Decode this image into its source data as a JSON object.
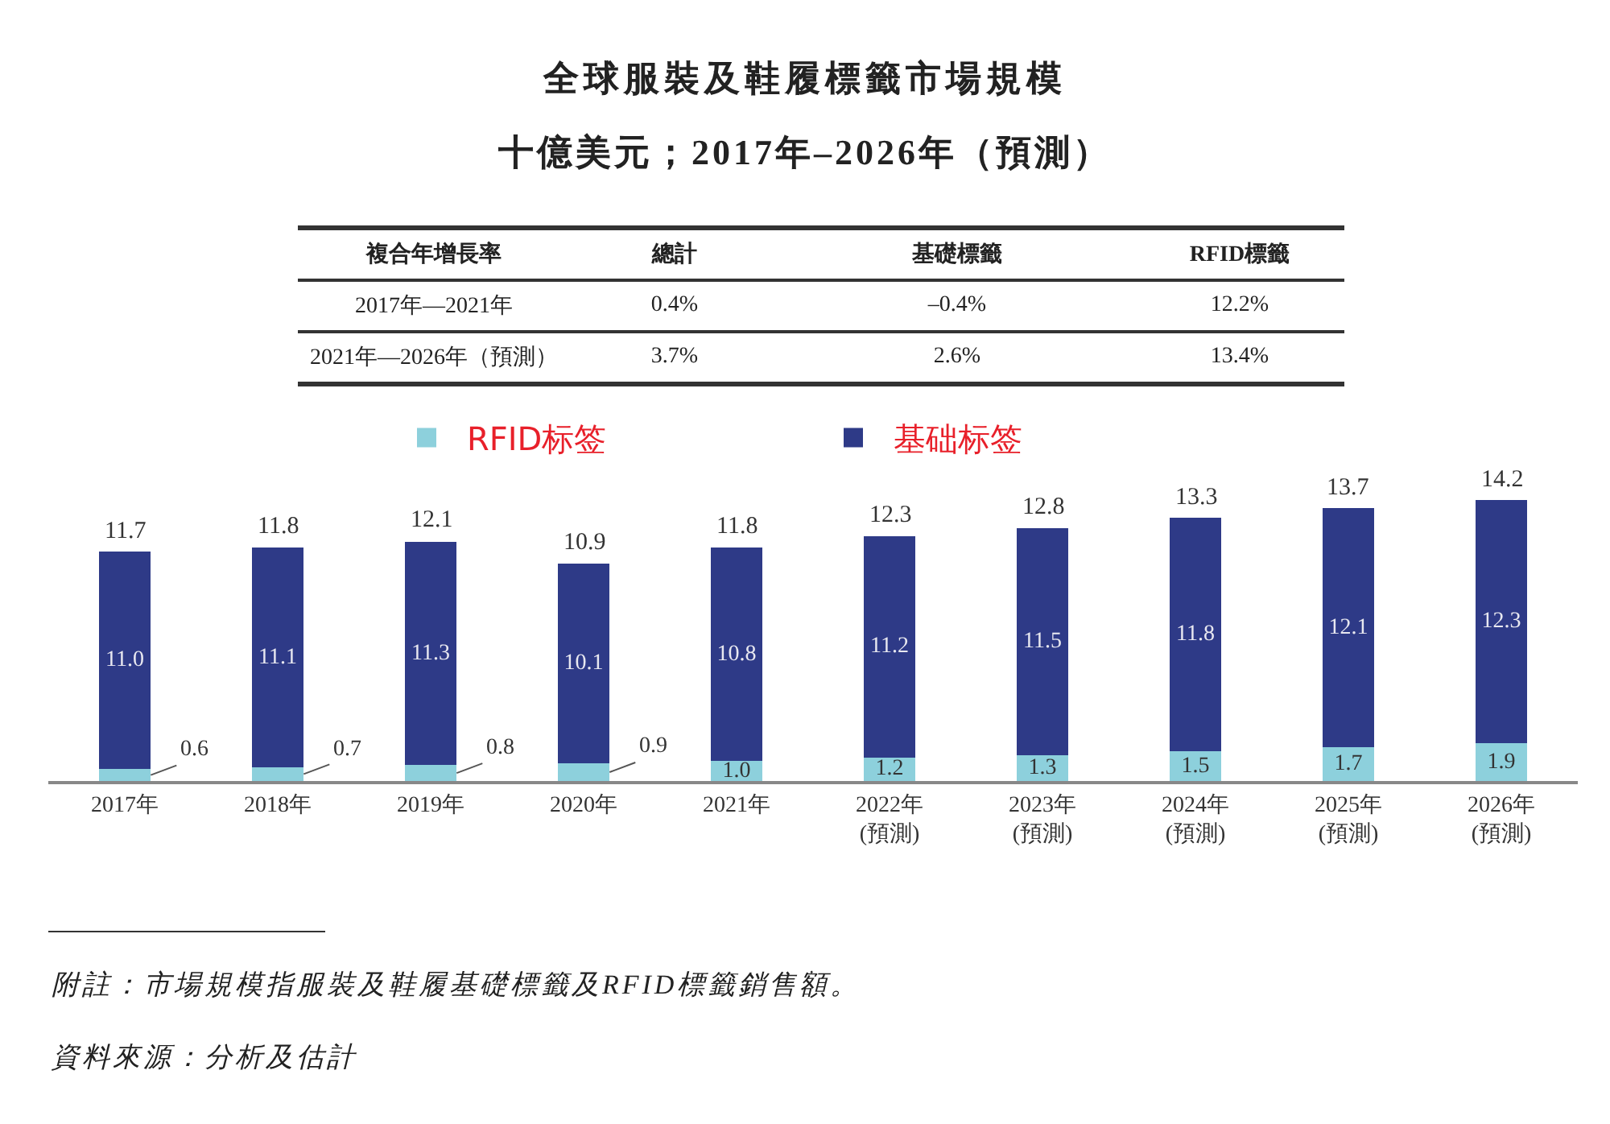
{
  "chart_data": {
    "type": "bar",
    "title": "全球服裝及鞋履標籤市場規模",
    "subtitle": "十億美元；2017年–2026年（預測）",
    "categories": [
      "2017年",
      "2018年",
      "2019年",
      "2020年",
      "2021年",
      "2022年\n(預測)",
      "2023年\n(預測)",
      "2024年\n(預測)",
      "2025年\n(預測)",
      "2026年\n(預測)"
    ],
    "stacked": true,
    "legend": "top",
    "grid": false,
    "series": [
      {
        "name": "RFID标签",
        "color": "#8dd0dc",
        "values": [
          0.6,
          0.7,
          0.8,
          0.9,
          1.0,
          1.2,
          1.3,
          1.5,
          1.7,
          1.9
        ],
        "value_labels": [
          "0.6",
          "0.7",
          "0.8",
          "0.9",
          "1.0",
          "1.2",
          "1.3",
          "1.5",
          "1.7",
          "1.9"
        ]
      },
      {
        "name": "基础标签",
        "color": "#2e3a87",
        "values": [
          11.0,
          11.1,
          11.3,
          10.1,
          10.8,
          11.2,
          11.5,
          11.8,
          12.1,
          12.3
        ],
        "value_labels": [
          "11.0",
          "11.1",
          "11.3",
          "10.1",
          "10.8",
          "11.2",
          "11.5",
          "11.8",
          "12.1",
          "12.3"
        ]
      }
    ],
    "totals": [
      "11.7",
      "11.8",
      "12.1",
      "10.9",
      "11.8",
      "12.3",
      "12.8",
      "13.3",
      "13.7",
      "14.2"
    ],
    "annotations": [
      "複合年增長率",
      "總計",
      "基礎標籤",
      "RFID標籤",
      "2017年—2021年",
      "0.4%",
      "–0.4%",
      "12.2%",
      "2021年—2026年（預測）",
      "3.7%",
      "2.6%",
      "13.4%",
      "附註：市場規模指服裝及鞋履基礎標籤及RFID標籤銷售額。",
      "資料來源：分析及估計"
    ]
  }
}
